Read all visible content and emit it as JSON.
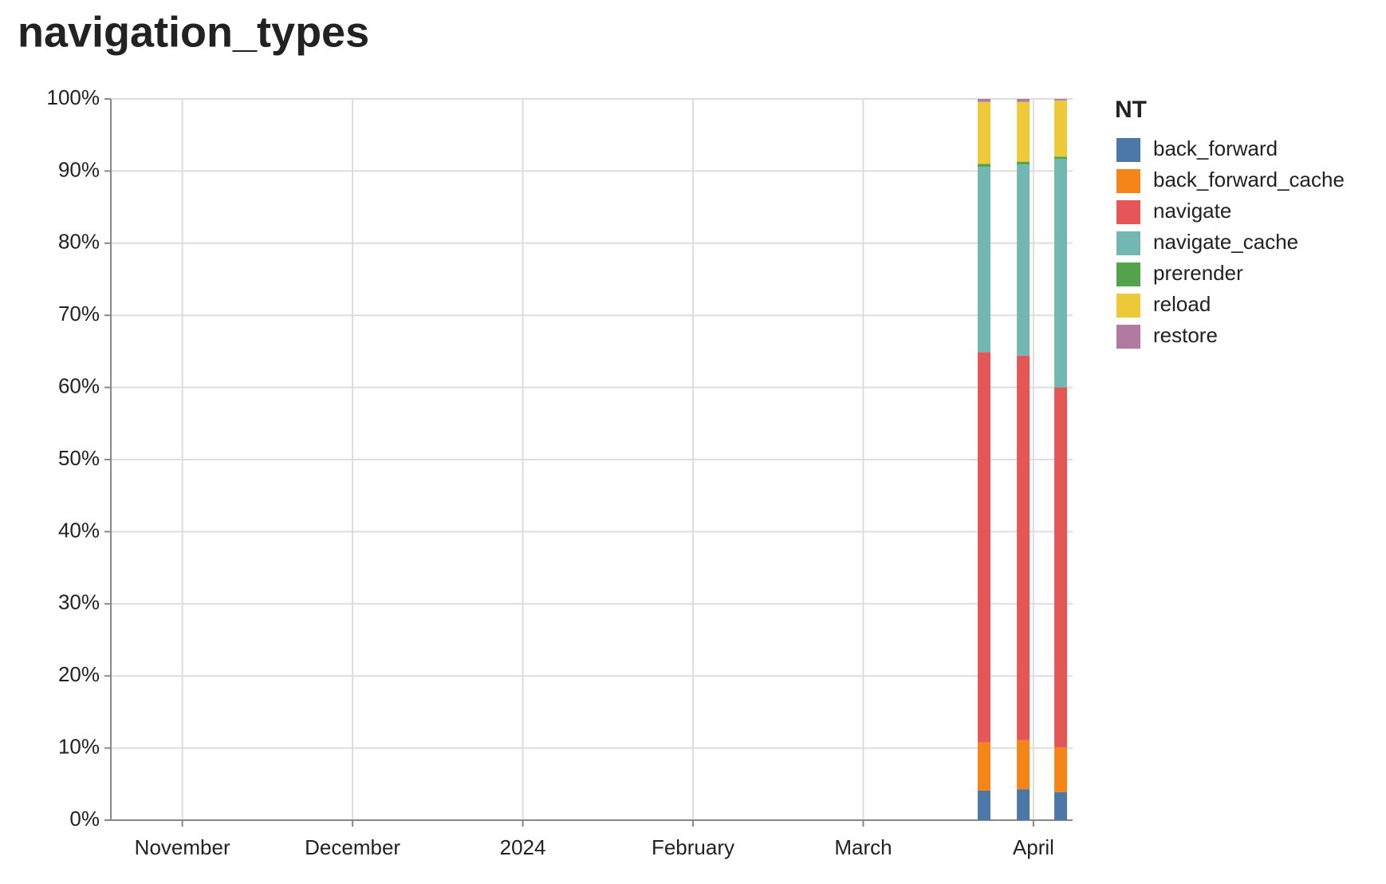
{
  "chart_data": {
    "type": "stacked_bar",
    "title": "navigation_types",
    "x": [
      15.71,
      15.94,
      16.16
    ],
    "xlim": [
      10.58,
      16.23
    ],
    "xticks": [
      {
        "value": 11,
        "label": "November"
      },
      {
        "value": 12,
        "label": "December"
      },
      {
        "value": 13,
        "label": "2024"
      },
      {
        "value": 14,
        "label": "February"
      },
      {
        "value": 15,
        "label": "March"
      },
      {
        "value": 16,
        "label": "April"
      }
    ],
    "ylim": [
      0,
      100
    ],
    "yticks": [
      {
        "value": 0,
        "label": "0%"
      },
      {
        "value": 10,
        "label": "10%"
      },
      {
        "value": 20,
        "label": "20%"
      },
      {
        "value": 30,
        "label": "30%"
      },
      {
        "value": 40,
        "label": "40%"
      },
      {
        "value": 50,
        "label": "50%"
      },
      {
        "value": 60,
        "label": "60%"
      },
      {
        "value": 70,
        "label": "70%"
      },
      {
        "value": 80,
        "label": "80%"
      },
      {
        "value": 90,
        "label": "90%"
      },
      {
        "value": 100,
        "label": "100%"
      }
    ],
    "grid": true,
    "legend_title": "NT",
    "legend_position": "right",
    "series": [
      {
        "name": "back_forward",
        "color": "#4c78a8",
        "values": [
          4.1,
          4.3,
          3.9
        ]
      },
      {
        "name": "back_forward_cache",
        "color": "#f58518",
        "values": [
          6.7,
          6.8,
          6.2
        ]
      },
      {
        "name": "navigate",
        "color": "#e45756",
        "values": [
          54.1,
          53.3,
          49.9
        ]
      },
      {
        "name": "navigate_cache",
        "color": "#72b7b2",
        "values": [
          25.7,
          26.5,
          31.7
        ]
      },
      {
        "name": "prerender",
        "color": "#54a24b",
        "values": [
          0.4,
          0.4,
          0.3
        ]
      },
      {
        "name": "reload",
        "color": "#eeca3b",
        "values": [
          8.6,
          8.3,
          7.8
        ]
      },
      {
        "name": "restore",
        "color": "#b279a2",
        "values": [
          0.4,
          0.4,
          0.2
        ]
      }
    ]
  }
}
